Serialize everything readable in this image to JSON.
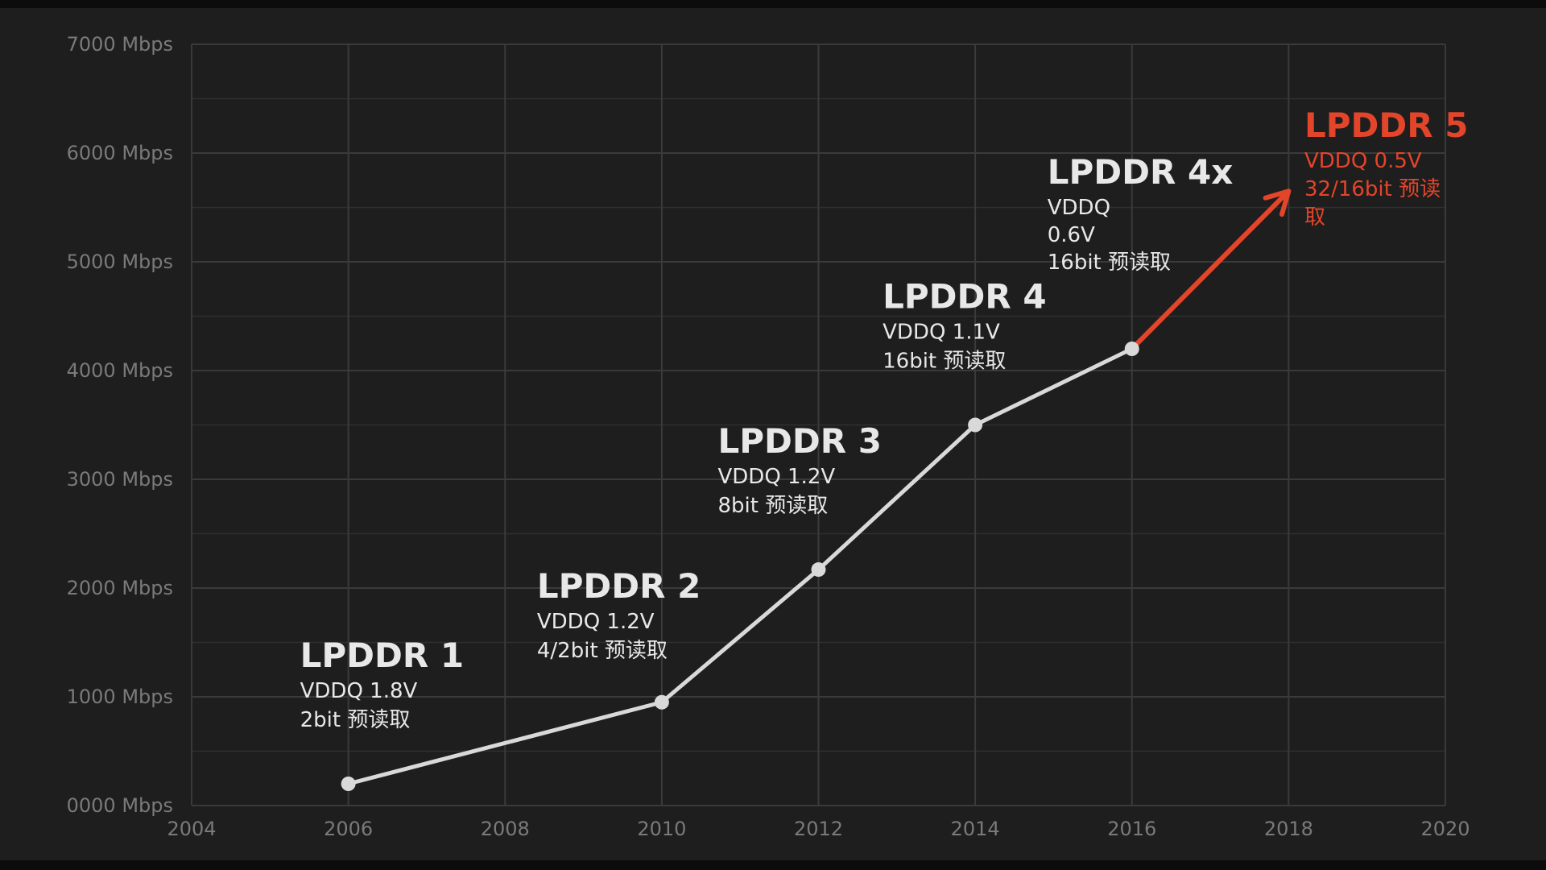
{
  "chart_data": {
    "type": "line",
    "title": "",
    "xlabel": "",
    "ylabel": "",
    "xlim": [
      2004,
      2020
    ],
    "ylim": [
      0,
      7000
    ],
    "x_ticks": [
      "2004",
      "2006",
      "2008",
      "2010",
      "2012",
      "2014",
      "2016",
      "2018",
      "2020"
    ],
    "y_ticks": [
      "0000 Mbps",
      "1000 Mbps",
      "2000 Mbps",
      "3000 Mbps",
      "4000 Mbps",
      "5000 Mbps",
      "6000 Mbps",
      "7000 Mbps"
    ],
    "grid": true,
    "line_color": "#d9d9d9",
    "accent_color": "#e2452a",
    "points": [
      {
        "x": 2006,
        "y": 200,
        "name": "LPDDR 1",
        "lines": [
          "VDDQ 1.8V",
          "2bit 预读取"
        ]
      },
      {
        "x": 2010,
        "y": 950,
        "name": "LPDDR 2",
        "lines": [
          "VDDQ 1.2V",
          "4/2bit 预读取"
        ]
      },
      {
        "x": 2012,
        "y": 2170,
        "name": "LPDDR 3",
        "lines": [
          "VDDQ 1.2V",
          "8bit 预读取"
        ]
      },
      {
        "x": 2014,
        "y": 3500,
        "name": "LPDDR 4",
        "lines": [
          "VDDQ 1.1V",
          "16bit 预读取"
        ]
      },
      {
        "x": 2016,
        "y": 4200,
        "name": "LPDDR 4x",
        "lines": [
          "VDDQ",
          "0.6V",
          "16bit 预读取"
        ]
      }
    ],
    "projection": {
      "from": {
        "x": 2016,
        "y": 4200
      },
      "to": {
        "x": 2018,
        "y": 5650
      },
      "name": "LPDDR 5",
      "lines": [
        "VDDQ 0.5V",
        "32/16bit 预读",
        "取"
      ]
    }
  }
}
